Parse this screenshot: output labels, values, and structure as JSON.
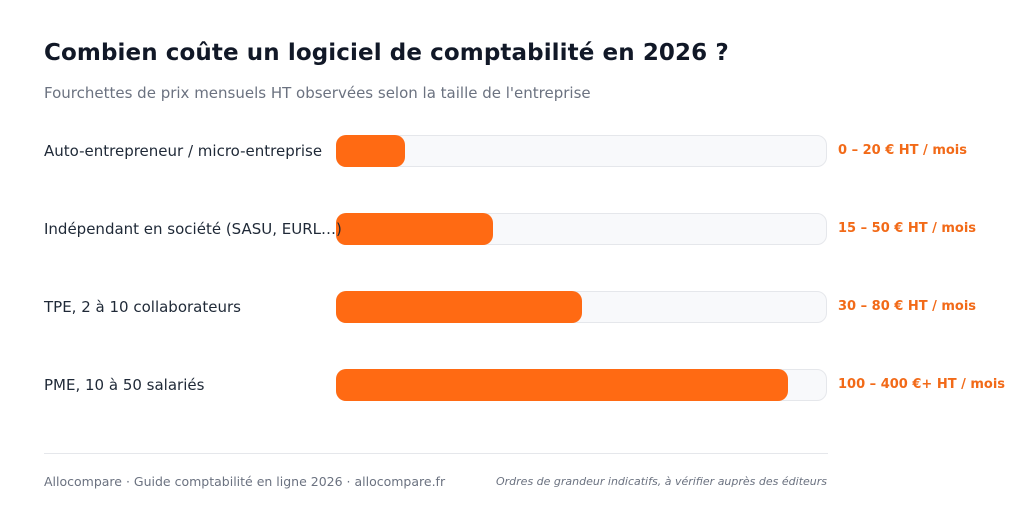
{
  "chart_data": {
    "type": "bar",
    "orientation": "horizontal",
    "title": "Combien coûte un logiciel de comptabilité en 2026 ?",
    "subtitle": "Fourchettes de prix mensuels HT observées selon la taille de l'entreprise",
    "categories": [
      "Auto-entrepreneur / micro-entreprise",
      "Indépendant en société (SASU, EURL…)",
      "TPE, 2 à 10 collaborateurs",
      "PME, 10 à 50 salariés"
    ],
    "values": [
      0.14,
      0.32,
      0.5,
      0.92
    ],
    "value_labels": [
      "0 – 20 € HT / mois",
      "15 – 50 € HT / mois",
      "30 – 80 € HT / mois",
      "100 – 400 €+ HT / mois"
    ],
    "grid": false,
    "legend": "none"
  },
  "colors": {
    "bar": "#ff6a13",
    "value_text": "#f26a18",
    "track": "#f8f9fb"
  },
  "footer": {
    "source": "Allocompare · Guide comptabilité en ligne 2026 · allocompare.fr",
    "note": "Ordres de grandeur indicatifs, à vérifier auprès des éditeurs"
  }
}
